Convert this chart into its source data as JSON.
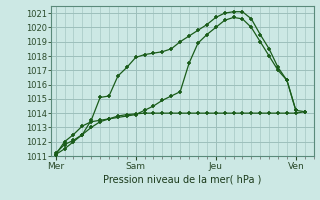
{
  "background_color": "#cce8e4",
  "plot_bg_color": "#cce8e4",
  "grid_color": "#9dbfbb",
  "line_color": "#1a5c1a",
  "title": "Pression niveau de la mer( hPa )",
  "ylim": [
    1011,
    1021.5
  ],
  "yticks": [
    1011,
    1012,
    1013,
    1014,
    1015,
    1016,
    1017,
    1018,
    1019,
    1020,
    1021
  ],
  "xtick_labels": [
    "Mer",
    "Sam",
    "Jeu",
    "Ven"
  ],
  "xtick_positions": [
    0,
    9,
    18,
    27
  ],
  "xlim": [
    -0.5,
    29
  ],
  "line1_x": [
    0,
    1,
    2,
    3,
    4,
    5,
    6,
    7,
    8,
    9,
    10,
    11,
    12,
    13,
    14,
    15,
    16,
    17,
    18,
    19,
    20,
    21,
    22,
    23,
    24,
    25,
    26,
    27
  ],
  "line1_y": [
    1011.2,
    1011.8,
    1012.1,
    1012.5,
    1013.5,
    1015.1,
    1015.2,
    1016.6,
    1017.2,
    1017.9,
    1018.1,
    1018.2,
    1018.3,
    1018.5,
    1019.0,
    1019.4,
    1019.8,
    1020.2,
    1020.7,
    1021.0,
    1021.1,
    1021.1,
    1020.6,
    1019.5,
    1018.5,
    1017.2,
    1016.3,
    1014.2
  ],
  "line2_x": [
    0,
    1,
    2,
    3,
    4,
    5,
    6,
    7,
    8,
    9,
    10,
    11,
    12,
    13,
    14,
    15,
    16,
    17,
    18,
    19,
    20,
    21,
    22,
    23,
    24,
    25,
    26,
    27,
    28
  ],
  "line2_y": [
    1011.1,
    1012.0,
    1012.5,
    1013.1,
    1013.4,
    1013.5,
    1013.6,
    1013.7,
    1013.8,
    1013.9,
    1014.2,
    1014.5,
    1014.9,
    1015.2,
    1015.5,
    1017.5,
    1018.9,
    1019.5,
    1020.0,
    1020.5,
    1020.7,
    1020.6,
    1020.0,
    1019.0,
    1018.0,
    1017.0,
    1016.3,
    1014.2,
    1014.1
  ],
  "line3_x": [
    0,
    1,
    2,
    3,
    4,
    5,
    6,
    7,
    8,
    9,
    10,
    11,
    12,
    13,
    14,
    15,
    16,
    17,
    18,
    19,
    20,
    21,
    22,
    23,
    24,
    25,
    26,
    27,
    28
  ],
  "line3_y": [
    1011.1,
    1011.5,
    1012.0,
    1012.5,
    1013.0,
    1013.4,
    1013.6,
    1013.8,
    1013.9,
    1013.95,
    1014.0,
    1014.0,
    1014.0,
    1014.0,
    1014.0,
    1014.0,
    1014.0,
    1014.0,
    1014.0,
    1014.0,
    1014.0,
    1014.0,
    1014.0,
    1014.0,
    1014.0,
    1014.0,
    1014.0,
    1014.0,
    1014.1
  ]
}
